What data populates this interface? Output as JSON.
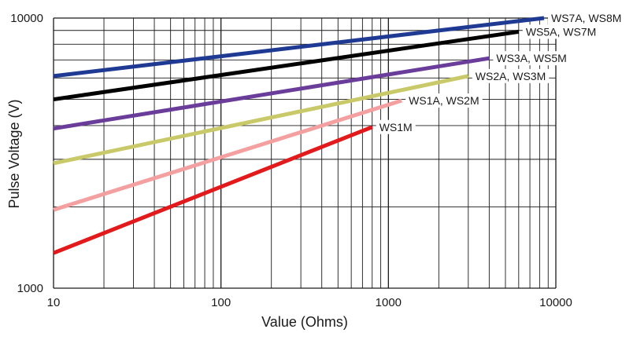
{
  "chart_data": {
    "type": "line",
    "xscale": "log",
    "yscale": "log",
    "xlim": [
      10,
      10000
    ],
    "ylim": [
      1000,
      10000
    ],
    "xlabel": "Value (Ohms)",
    "ylabel": "Pulse Voltage (V)",
    "x_ticks": [
      "10",
      "100",
      "1000",
      "10000"
    ],
    "y_ticks": [
      "1000",
      "10000"
    ],
    "grid": true,
    "series": [
      {
        "name": "WS7A, WS8M",
        "color": "#1f3a93",
        "x": [
          10,
          8500
        ],
        "y": [
          6100,
          10000
        ]
      },
      {
        "name": "WS5A, WS7M",
        "color": "#000000",
        "x": [
          10,
          6000
        ],
        "y": [
          5000,
          8900
        ]
      },
      {
        "name": "WS3A, WS5M",
        "color": "#6a3d9a",
        "x": [
          10,
          4000
        ],
        "y": [
          3900,
          7100
        ]
      },
      {
        "name": "WS2A, WS3M",
        "color": "#c9c96a",
        "x": [
          10,
          3000
        ],
        "y": [
          2900,
          6100
        ]
      },
      {
        "name": "WS1A, WS2M",
        "color": "#f4a0a0",
        "x": [
          10,
          1200
        ],
        "y": [
          1950,
          4950
        ]
      },
      {
        "name": "WS1M",
        "color": "#e31a1c",
        "x": [
          10,
          800
        ],
        "y": [
          1350,
          3950
        ]
      }
    ]
  }
}
